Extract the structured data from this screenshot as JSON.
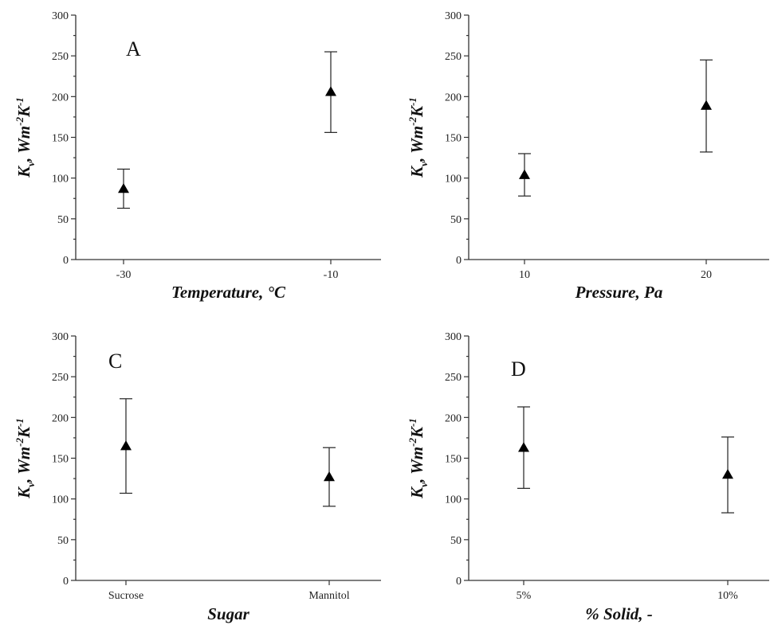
{
  "chart_data": [
    {
      "type": "scatter",
      "panel_label": "A",
      "xlabel": "Temperature, °C",
      "ylabel": "Kv, Wm-2K-1",
      "categories": [
        "-30",
        "-10"
      ],
      "values": [
        87,
        206
      ],
      "errors": [
        [
          63,
          111
        ],
        [
          156,
          255
        ]
      ],
      "ylim": [
        0,
        300
      ],
      "yticks": [
        0,
        50,
        100,
        150,
        200,
        250,
        300
      ]
    },
    {
      "type": "scatter",
      "panel_label": "",
      "xlabel": "Pressure, Pa",
      "ylabel": "Kv, Wm-2K-1",
      "categories": [
        "10",
        "20"
      ],
      "values": [
        104,
        189
      ],
      "errors": [
        [
          78,
          130
        ],
        [
          132,
          245
        ]
      ],
      "ylim": [
        0,
        300
      ],
      "yticks": [
        0,
        50,
        100,
        150,
        200,
        250,
        300
      ]
    },
    {
      "type": "scatter",
      "panel_label": "C",
      "xlabel": "Sugar",
      "ylabel": "Kv, Wm-2K-1",
      "categories": [
        "Sucrose",
        "Mannitol"
      ],
      "values": [
        165,
        127
      ],
      "errors": [
        [
          107,
          223
        ],
        [
          91,
          163
        ]
      ],
      "ylim": [
        0,
        300
      ],
      "yticks": [
        0,
        50,
        100,
        150,
        200,
        250,
        300
      ]
    },
    {
      "type": "scatter",
      "panel_label": "D",
      "xlabel": "% Solid, -",
      "ylabel": "Kv, Wm-2K-1",
      "categories": [
        "5%",
        "10%"
      ],
      "values": [
        163,
        130
      ],
      "errors": [
        [
          113,
          213
        ],
        [
          83,
          176
        ]
      ],
      "ylim": [
        0,
        300
      ],
      "yticks": [
        0,
        50,
        100,
        150,
        200,
        250,
        300
      ]
    }
  ]
}
